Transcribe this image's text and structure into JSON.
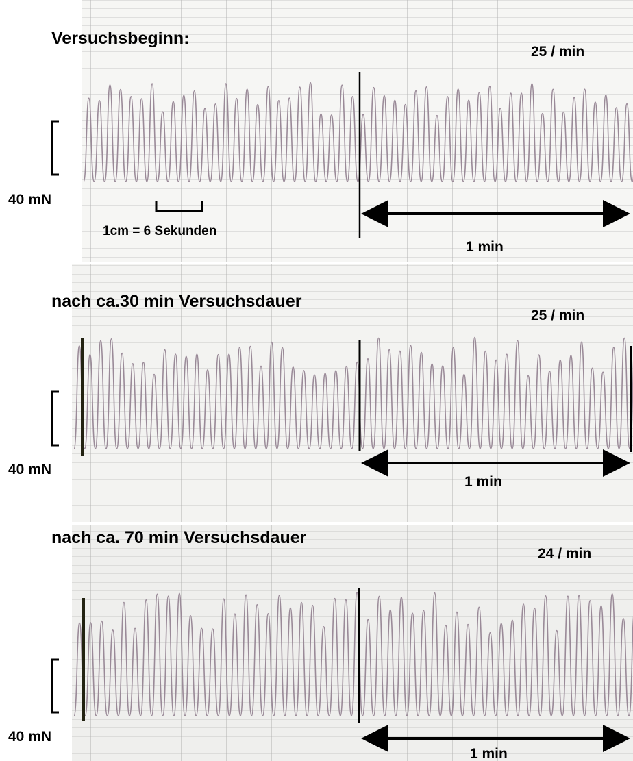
{
  "panels": [
    {
      "title": "Versuchsbeginn:",
      "rate": "25 / min",
      "force_scale": "40 mN",
      "time_span": "1 min",
      "time_scale": "1cm = 6 Sekunden"
    },
    {
      "title": "nach ca.30 min Versuchsdauer",
      "rate": "25 / min",
      "force_scale": "40 mN",
      "time_span": "1 min"
    },
    {
      "title": "nach ca. 70 min Versuchsdauer",
      "rate": "24 / min",
      "force_scale": "40 mN",
      "time_span": "1 min"
    }
  ]
}
